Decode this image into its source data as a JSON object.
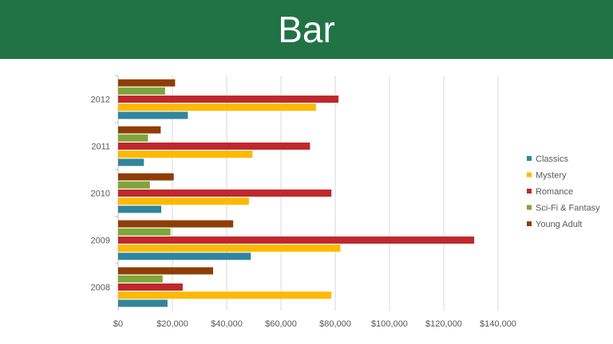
{
  "slide": {
    "title": "Bar"
  },
  "chart_data": {
    "type": "bar",
    "orientation": "horizontal",
    "title": "",
    "xlabel": "",
    "ylabel": "",
    "categories": [
      "2008",
      "2009",
      "2010",
      "2011",
      "2012"
    ],
    "xlim": [
      0,
      140000
    ],
    "x_ticks": [
      "$0",
      "$20,000",
      "$40,000",
      "$60,000",
      "$80,000",
      "$100,000",
      "$120,000",
      "$140,000"
    ],
    "grid": true,
    "legend_position": "right",
    "series": [
      {
        "name": "Classics",
        "color": "#31859c",
        "values": [
          18200,
          48900,
          15900,
          9500,
          25700
        ]
      },
      {
        "name": "Mystery",
        "color": "#ffb900",
        "values": [
          78600,
          81900,
          48200,
          49500,
          72900
        ]
      },
      {
        "name": "Romance",
        "color": "#c0282d",
        "values": [
          23800,
          131200,
          78600,
          70700,
          81200
        ]
      },
      {
        "name": "Sci-Fi & Fantasy",
        "color": "#7ea63a",
        "values": [
          16400,
          19300,
          11700,
          11000,
          17300
        ]
      },
      {
        "name": "Young Adult",
        "color": "#8e3e06",
        "values": [
          35000,
          42400,
          20500,
          15700,
          21000
        ]
      }
    ]
  }
}
